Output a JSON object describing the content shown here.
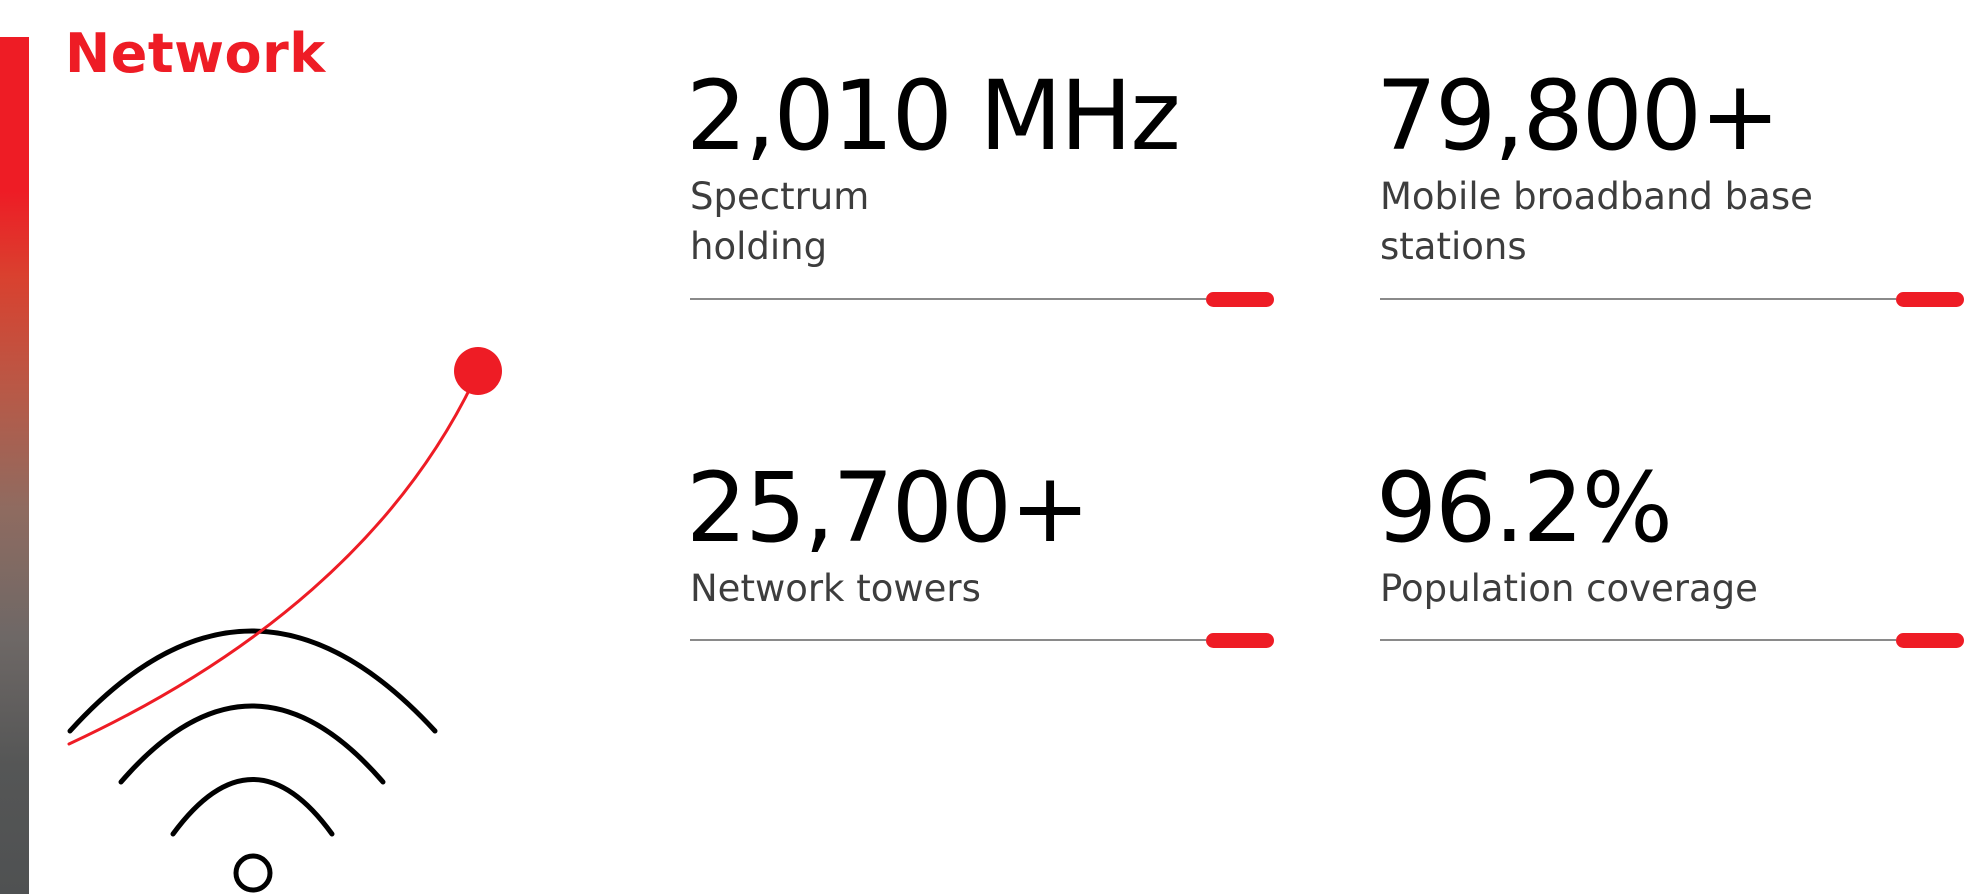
{
  "section": {
    "title": "Network"
  },
  "colors": {
    "accent": "#ee1c25",
    "text": "#000000",
    "label_text": "#3d3d3d"
  },
  "illustration": {
    "icon": "wifi-signal-icon"
  },
  "stats": [
    {
      "value": "2,010 MHz",
      "label_line1": "Spectrum",
      "label_line2": "holding"
    },
    {
      "value": "79,800+",
      "label_line1": "Mobile broadband base",
      "label_line2": "stations"
    },
    {
      "value": "25,700+",
      "label_line1": "Network towers",
      "label_line2": ""
    },
    {
      "value": "96.2%",
      "label_line1": "Population coverage",
      "label_line2": ""
    }
  ]
}
